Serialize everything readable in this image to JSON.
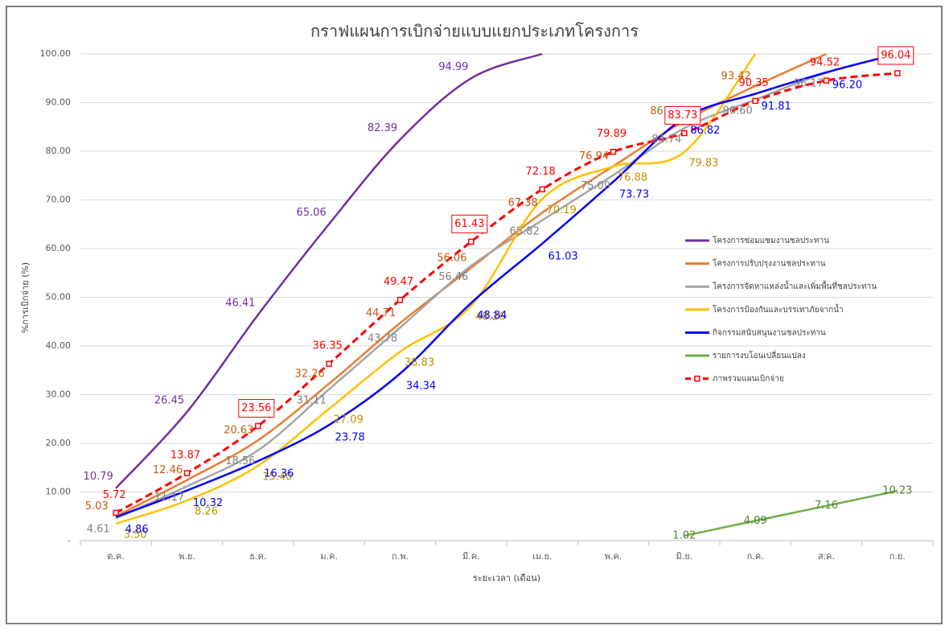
{
  "chart_data": {
    "type": "line",
    "title": "กราฟแผนการเบิกจ่ายแบบแยกประเภทโครงการ",
    "xlabel": "ระยะเวลา (เดือน)",
    "ylabel": "%การเบิกจ่าย (%)",
    "categories": [
      "ต.ค.",
      "พ.ย.",
      "ธ.ค.",
      "ม.ค.",
      "ก.พ.",
      "มี.ค.",
      "เม.ย.",
      "พ.ค.",
      "มิ.ย.",
      "ก.ค.",
      "ส.ค.",
      "ก.ย."
    ],
    "ylim": [
      0,
      100
    ],
    "yticks": [
      {
        "value": 0,
        "label": "-"
      },
      {
        "value": 10,
        "label": "10.00"
      },
      {
        "value": 20,
        "label": "20.00"
      },
      {
        "value": 30,
        "label": "30.00"
      },
      {
        "value": 40,
        "label": "40.00"
      },
      {
        "value": 50,
        "label": "50.00"
      },
      {
        "value": 60,
        "label": "60.00"
      },
      {
        "value": 70,
        "label": "70.00"
      },
      {
        "value": 80,
        "label": "80.00"
      },
      {
        "value": 90,
        "label": "90.00"
      },
      {
        "value": 100,
        "label": "100.00"
      }
    ],
    "grid": true,
    "legend_position": "right",
    "series": [
      {
        "name": "โครงการซ่อมแซมงานชลประทาน",
        "color": "#7030a0",
        "label_color": "#7030a0",
        "values": [
          10.79,
          26.45,
          46.41,
          65.06,
          82.39,
          94.99,
          100,
          null,
          null,
          null,
          null,
          null
        ],
        "value_labels": [
          "10.79",
          "26.45",
          "46.41",
          "65.06",
          "82.39",
          "94.99",
          null,
          null,
          null,
          null,
          null,
          null
        ]
      },
      {
        "name": "โครงการปรับปรุงงานชลประทาน",
        "color": "#ed7d31",
        "label_color": "#c55a11",
        "values": [
          5.03,
          12.46,
          20.63,
          32.26,
          44.71,
          56.06,
          67.38,
          76.94,
          86.19,
          93.42,
          100,
          null
        ],
        "value_labels": [
          "5.03",
          "12.46",
          "20.63",
          "32.26",
          "44.71",
          "56.06",
          "67.38",
          "76.94",
          "86.19",
          "93.42",
          null,
          null
        ]
      },
      {
        "name": "โครงการจัดหาแหล่งน้ำและเพิ่มพื้นที่ชลประทาน",
        "color": "#a5a5a5",
        "label_color": "#7f7f7f",
        "values": [
          4.61,
          11.17,
          18.56,
          31.11,
          43.78,
          56.46,
          65.82,
          75.09,
          84.74,
          90.6,
          96.17,
          100
        ],
        "value_labels": [
          "4.61",
          "11.17",
          "18.56",
          "31.11",
          "43.78",
          "56.46",
          "65.82",
          "75.09",
          "84.74",
          "90.60",
          "96.17",
          null
        ]
      },
      {
        "name": "โครงการป้องกันและบรรเทาภัยจากน้ำ",
        "color": "#ffc000",
        "label_color": "#bf9000",
        "values": [
          3.5,
          8.26,
          15.4,
          27.09,
          38.83,
          48.26,
          70.19,
          76.88,
          79.83,
          100,
          null,
          null
        ],
        "value_labels": [
          "3.50",
          "8.26",
          "15.40",
          "27.09",
          "38.83",
          "48.26",
          "70.19",
          "76.88",
          "79.83",
          null,
          null,
          null
        ]
      },
      {
        "name": "กิจกรรมสนับสนุนงานชลประทาน",
        "color": "#0000ff",
        "label_color": "#0000ff",
        "values": [
          4.86,
          10.32,
          16.36,
          23.78,
          34.34,
          48.84,
          61.03,
          73.73,
          86.82,
          91.81,
          96.2,
          100
        ],
        "value_labels": [
          "4.86",
          "10.32",
          "16.36",
          "23.78",
          "34.34",
          "48.84",
          "61.03",
          "73.73",
          "86.82",
          "91.81",
          "96.20",
          null
        ]
      },
      {
        "name": "รายการงบโอนเปลี่ยนแปลง",
        "color": "#70ad47",
        "label_color": "#548235",
        "values": [
          null,
          null,
          null,
          null,
          null,
          null,
          null,
          null,
          1.02,
          4.09,
          7.16,
          10.23
        ],
        "value_labels": [
          null,
          null,
          null,
          null,
          null,
          null,
          null,
          null,
          "1.02",
          "4.09",
          "7.16",
          "10.23"
        ]
      },
      {
        "name": "ภาพรวมแผนเบิกจ่าย",
        "color": "#ff0000",
        "label_color": "#ff0000",
        "dashed": true,
        "values": [
          5.72,
          13.87,
          23.56,
          36.35,
          49.47,
          61.43,
          72.18,
          79.89,
          83.73,
          90.35,
          94.52,
          96.04
        ],
        "value_labels": [
          "5.72",
          "13.87",
          "23.56",
          "36.35",
          "49.47",
          "61.43",
          "72.18",
          "79.89",
          "83.73",
          "90.35",
          "94.52",
          "96.04"
        ]
      }
    ]
  }
}
